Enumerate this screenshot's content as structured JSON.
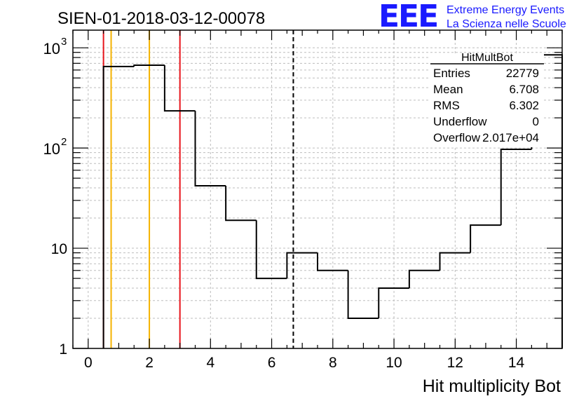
{
  "chart_data": {
    "type": "bar",
    "title": "SIEN-01-2018-03-12-00078",
    "xlabel": "Hit multiplicity Bot",
    "ylabel": "",
    "yscale": "log",
    "xlim": [
      -0.5,
      15.5
    ],
    "ylim": [
      1,
      1500
    ],
    "bins": [
      {
        "lo": 0.5,
        "hi": 1.5,
        "value": 650
      },
      {
        "lo": 1.5,
        "hi": 2.5,
        "value": 670
      },
      {
        "lo": 2.5,
        "hi": 3.5,
        "value": 235
      },
      {
        "lo": 3.5,
        "hi": 4.5,
        "value": 42
      },
      {
        "lo": 4.5,
        "hi": 5.5,
        "value": 19
      },
      {
        "lo": 5.5,
        "hi": 6.5,
        "value": 5
      },
      {
        "lo": 6.5,
        "hi": 7.5,
        "value": 9
      },
      {
        "lo": 7.5,
        "hi": 8.5,
        "value": 6
      },
      {
        "lo": 8.5,
        "hi": 9.5,
        "value": 2
      },
      {
        "lo": 9.5,
        "hi": 10.5,
        "value": 4
      },
      {
        "lo": 10.5,
        "hi": 11.5,
        "value": 6
      },
      {
        "lo": 11.5,
        "hi": 12.5,
        "value": 9
      },
      {
        "lo": 12.5,
        "hi": 13.5,
        "value": 17
      },
      {
        "lo": 13.5,
        "hi": 14.5,
        "value": 97
      },
      {
        "lo": 14.5,
        "hi": 15.5,
        "value": 850
      }
    ],
    "x_ticks": [
      0,
      2,
      4,
      6,
      8,
      10,
      12,
      14
    ],
    "y_ticks": [
      {
        "value": 1,
        "label": "1"
      },
      {
        "value": 10,
        "label": "10"
      },
      {
        "value": 100,
        "label": "10",
        "exp": "2"
      },
      {
        "value": 1000,
        "label": "10",
        "exp": "3"
      }
    ],
    "vertical_lines": [
      {
        "x": 0.5,
        "color": "#e8141b",
        "style": "solid"
      },
      {
        "x": 0.75,
        "color": "#f5b300",
        "style": "solid"
      },
      {
        "x": 2.0,
        "color": "#f5b300",
        "style": "solid"
      },
      {
        "x": 3.0,
        "color": "#e8141b",
        "style": "solid"
      },
      {
        "x": 6.708,
        "color": "#000000",
        "style": "dashed"
      }
    ],
    "grid": true,
    "stats_box": {
      "name": "HitMultBot",
      "rows": [
        {
          "label": "Entries",
          "value": "22779"
        },
        {
          "label": "Mean",
          "value": "6.708"
        },
        {
          "label": "RMS",
          "value": "6.302"
        },
        {
          "label": "Underflow",
          "value": "0"
        },
        {
          "label": "Overflow",
          "value": "2.017e+04"
        }
      ],
      "position": "top-right"
    }
  },
  "logo": {
    "mark": "EEE",
    "line1": "Extreme Energy Events",
    "line2": "La Scienza nelle Scuole",
    "color": "#1a1aff"
  },
  "colors": {
    "histogram": "#000000",
    "grid": "#bdbdbd"
  }
}
